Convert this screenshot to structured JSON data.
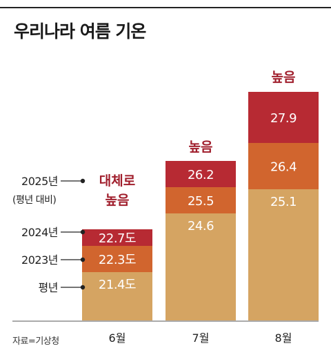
{
  "title": "우리나라 여름 기온",
  "source": "자료=기상청",
  "colors": {
    "average": "#d5a462",
    "y2023": "#d1652e",
    "y2024": "#b72a33",
    "label_text": "#ffffff",
    "annotation": "#a01e2c",
    "axis_text": "#222222"
  },
  "chart_data": {
    "type": "bar",
    "categories": [
      "6월",
      "7월",
      "8월"
    ],
    "series": [
      {
        "name": "평년",
        "values": [
          21.4,
          24.6,
          25.1
        ],
        "labels": [
          "21.4도",
          "24.6",
          "25.1"
        ]
      },
      {
        "name": "2023년",
        "values": [
          22.3,
          25.5,
          26.4
        ],
        "labels": [
          "22.3도",
          "25.5",
          "26.4"
        ]
      },
      {
        "name": "2024년",
        "values": [
          22.7,
          26.2,
          27.9
        ],
        "labels": [
          "22.7도",
          "26.2",
          "27.9"
        ]
      }
    ],
    "annotations": [
      "대체로 높음",
      "높음",
      "높음"
    ],
    "annotation_header": {
      "line1": "2025년",
      "line2": "(평년 대비)"
    },
    "legend_labels": [
      "2024년",
      "2023년",
      "평년"
    ]
  }
}
